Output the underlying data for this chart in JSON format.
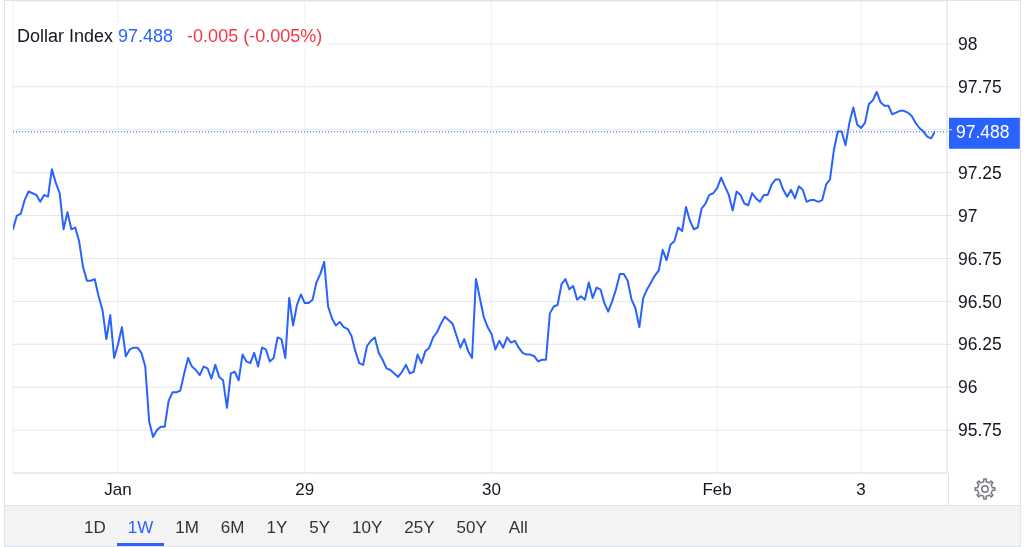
{
  "chart_data": {
    "type": "line",
    "title": "Dollar Index",
    "subtitle": "97.488",
    "annotations": [
      "-0.005 (-0.005%)",
      "1D",
      "1W",
      "1M",
      "6M",
      "1Y",
      "5Y",
      "10Y",
      "25Y",
      "50Y",
      "All"
    ],
    "categories": [
      null,
      null,
      null,
      null,
      null,
      null,
      null,
      null,
      null,
      null,
      null,
      null,
      null,
      null,
      null,
      null,
      null,
      null,
      null,
      null,
      null,
      null,
      null,
      null,
      null,
      null,
      null,
      "Jan",
      null,
      null,
      null,
      null,
      null,
      null,
      null,
      null,
      null,
      null,
      null,
      null,
      null,
      null,
      null,
      null,
      null,
      null,
      null,
      null,
      null,
      null,
      null,
      null,
      null,
      null,
      null,
      null,
      null,
      null,
      null,
      null,
      null,
      null,
      null,
      null,
      null,
      null,
      null,
      null,
      null,
      null,
      null,
      null,
      null,
      null,
      null,
      "29",
      null,
      null,
      null,
      null,
      null,
      null,
      null,
      null,
      null,
      null,
      null,
      null,
      null,
      null,
      null,
      null,
      null,
      null,
      null,
      null,
      null,
      null,
      null,
      null,
      null,
      null,
      null,
      null,
      null,
      null,
      null,
      null,
      null,
      null,
      null,
      null,
      null,
      null,
      null,
      null,
      null,
      null,
      null,
      null,
      null,
      null,
      null,
      "30",
      null,
      null,
      null,
      null,
      null,
      null,
      null,
      null,
      null,
      null,
      null,
      null,
      null,
      null,
      null,
      null,
      null,
      null,
      null,
      null,
      null,
      null,
      null,
      null,
      null,
      null,
      null,
      null,
      null,
      null,
      null,
      null,
      null,
      null,
      null,
      null,
      null,
      null,
      null,
      null,
      null,
      null,
      null,
      null,
      null,
      null,
      null,
      null,
      null,
      null,
      null,
      null,
      null,
      null,
      null,
      null,
      null,
      "Feb",
      null,
      null,
      null,
      null,
      null,
      null,
      null,
      null,
      null,
      null,
      null,
      null,
      null,
      null,
      null,
      null,
      null,
      null,
      null,
      null,
      null,
      null,
      null,
      null,
      null,
      null,
      null,
      null,
      null,
      null,
      null,
      null,
      null,
      null,
      null,
      null,
      "3",
      null,
      null,
      null,
      null,
      null,
      null,
      null,
      null,
      null,
      null,
      null,
      null,
      null,
      null,
      null,
      null,
      null,
      null,
      null
    ],
    "series": [
      {
        "color": "#2962ff",
        "values": [
          96.92,
          97.0,
          97.01,
          97.09,
          97.14,
          97.13,
          97.12,
          97.08,
          97.12,
          97.11,
          97.27,
          97.19,
          97.13,
          96.92,
          97.02,
          96.92,
          96.93,
          96.85,
          96.7,
          96.62,
          96.62,
          96.63,
          96.53,
          96.45,
          96.28,
          96.42,
          96.17,
          96.25,
          96.35,
          96.18,
          96.22,
          96.23,
          96.23,
          96.2,
          96.12,
          95.8,
          95.71,
          95.75,
          95.77,
          95.77,
          95.92,
          95.97,
          95.97,
          95.98,
          96.08,
          96.17,
          96.12,
          96.1,
          96.07,
          96.12,
          96.11,
          96.05,
          96.13,
          96.06,
          96.04,
          95.88,
          96.08,
          96.09,
          96.04,
          96.19,
          96.15,
          96.14,
          96.2,
          96.12,
          96.23,
          96.22,
          96.15,
          96.17,
          96.29,
          96.28,
          96.17,
          96.52,
          96.36,
          96.48,
          96.54,
          96.49,
          96.49,
          96.51,
          96.61,
          96.66,
          96.73,
          96.47,
          96.4,
          96.36,
          96.38,
          96.35,
          96.34,
          96.3,
          96.21,
          96.14,
          96.13,
          96.24,
          96.27,
          96.29,
          96.2,
          96.16,
          96.11,
          96.1,
          96.08,
          96.06,
          96.09,
          96.13,
          96.08,
          96.09,
          96.19,
          96.14,
          96.21,
          96.23,
          96.29,
          96.32,
          96.37,
          96.41,
          96.39,
          96.37,
          96.3,
          96.23,
          96.28,
          96.21,
          96.17,
          96.63,
          96.52,
          96.41,
          96.35,
          96.31,
          96.22,
          96.27,
          96.23,
          96.29,
          96.26,
          96.27,
          96.23,
          96.2,
          96.19,
          96.19,
          96.18,
          96.15,
          96.16,
          96.16,
          96.43,
          96.47,
          96.48,
          96.6,
          96.63,
          96.57,
          96.59,
          96.51,
          96.53,
          96.51,
          96.61,
          96.52,
          96.58,
          96.57,
          96.49,
          96.44,
          96.5,
          96.57,
          96.66,
          96.66,
          96.62,
          96.51,
          96.46,
          96.35,
          96.52,
          96.57,
          96.61,
          96.65,
          96.68,
          96.8,
          96.74,
          96.83,
          96.85,
          96.93,
          96.91,
          97.05,
          96.97,
          96.92,
          96.93,
          97.04,
          97.07,
          97.12,
          97.13,
          97.16,
          97.22,
          97.17,
          97.12,
          97.03,
          97.14,
          97.12,
          97.07,
          97.06,
          97.13,
          97.1,
          97.08,
          97.12,
          97.12,
          97.18,
          97.21,
          97.21,
          97.15,
          97.11,
          97.15,
          97.1,
          97.17,
          97.15,
          97.08,
          97.09,
          97.09,
          97.08,
          97.09,
          97.18,
          97.21,
          97.38,
          97.49,
          97.49,
          97.41,
          97.54,
          97.63,
          97.53,
          97.51,
          97.54,
          97.65,
          97.67,
          97.72,
          97.66,
          97.64,
          97.64,
          97.59,
          97.6,
          97.61,
          97.61,
          97.6,
          97.58,
          97.54,
          97.51,
          97.49,
          97.46,
          97.45,
          97.49
        ]
      }
    ],
    "ylim": [
      95.5,
      98.25
    ],
    "yticks": [
      95.75,
      96,
      96.25,
      {
        "value": 96.5,
        "label": "96.50"
      },
      96.75,
      97,
      97.25,
      {
        "value": 97.5,
        "label": null
      },
      97.75,
      98
    ],
    "ref_lines": [
      {
        "axis": "y",
        "value": 97.488,
        "label": "97.488",
        "color": "#2962ff",
        "line_style": "dotted"
      }
    ],
    "grid": true,
    "marker": "none",
    "line_style": "solid"
  }
}
